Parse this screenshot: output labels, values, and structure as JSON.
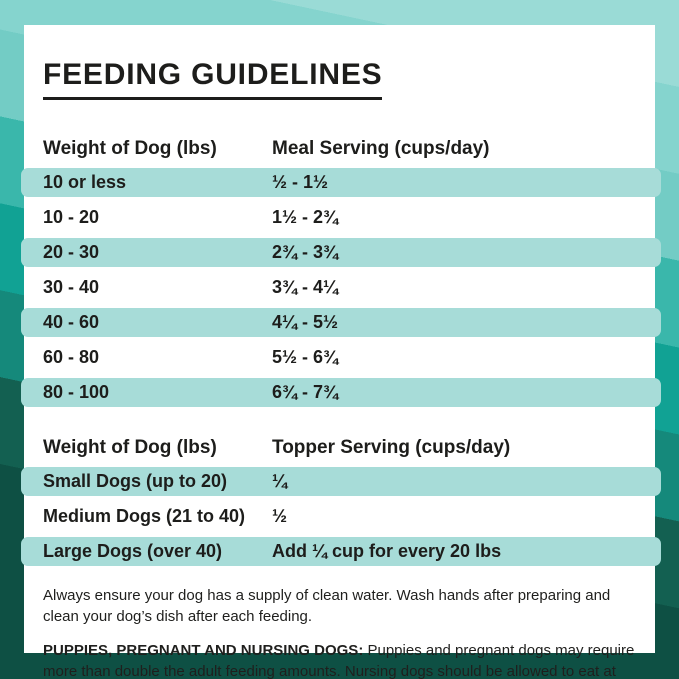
{
  "title": "FEEDING GUIDELINES",
  "meal_table": {
    "col1_header": "Weight of Dog (lbs)",
    "col2_header": "Meal Serving (cups/day)",
    "rows": [
      {
        "weight": "10 or less",
        "serving": "½ - 1½"
      },
      {
        "weight": "10 - 20",
        "serving": "1½ - 2¾"
      },
      {
        "weight": "20 - 30",
        "serving": "2¾ - 3¾"
      },
      {
        "weight": "30 - 40",
        "serving": "3¾ - 4¼"
      },
      {
        "weight": "40 - 60",
        "serving": "4¼ - 5½"
      },
      {
        "weight": "60 - 80",
        "serving": "5½ - 6¾"
      },
      {
        "weight": "80 - 100",
        "serving": "6¾ - 7¾"
      }
    ]
  },
  "topper_table": {
    "col1_header": "Weight of Dog (lbs)",
    "col2_header": "Topper Serving (cups/day)",
    "rows": [
      {
        "weight": "Small Dogs (up to 20)",
        "serving": "¼"
      },
      {
        "weight": "Medium Dogs (21 to 40)",
        "serving": "½"
      },
      {
        "weight": "Large Dogs (over 40)",
        "serving": "Add ¼ cup for every 20 lbs"
      }
    ]
  },
  "notes": {
    "water_note": "Always ensure your dog has a supply of clean water. Wash hands after preparing and clean your dog’s dish after each feeding.",
    "special_note_lead": "PUPPIES, PREGNANT AND NURSING DOGS:",
    "special_note_body": "Puppies and pregnant dogs may require more than double the adult feeding amounts. Nursing dogs should be allowed to eat at will."
  },
  "theme": {
    "row_highlight": "#a7dcd8",
    "card_background": "#ffffff",
    "text_color": "#1d1d1b",
    "background_top": "#9adbd6",
    "background_bottom": "#0e5044"
  }
}
